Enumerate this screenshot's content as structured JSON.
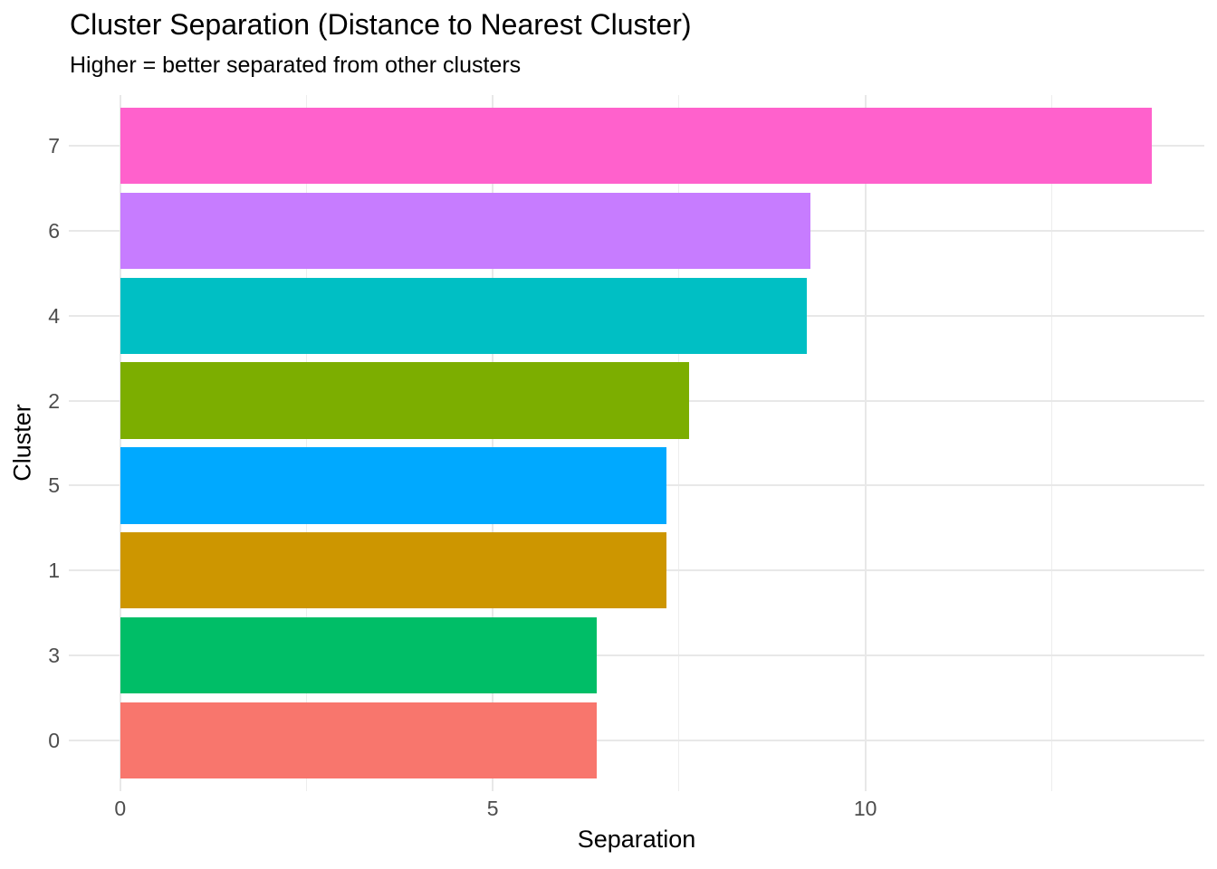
{
  "chart_data": {
    "type": "bar",
    "orientation": "horizontal",
    "title": "Cluster Separation (Distance to Nearest Cluster)",
    "subtitle": "Higher = better separated from other clusters",
    "xlabel": "Separation",
    "ylabel": "Cluster",
    "categories": [
      "7",
      "6",
      "4",
      "2",
      "5",
      "1",
      "3",
      "0"
    ],
    "values": [
      13.85,
      9.26,
      9.21,
      7.64,
      7.33,
      7.33,
      6.39,
      6.39
    ],
    "bar_colors": [
      "#FF61CC",
      "#C77CFF",
      "#00BFC4",
      "#7CAE00",
      "#00A9FF",
      "#CD9600",
      "#00BE67",
      "#F8766D"
    ],
    "x_axis": {
      "tick_labels": [
        "0",
        "5",
        "10"
      ],
      "tick_values": [
        0,
        5,
        10
      ],
      "minor_tick_values": [
        2.5,
        7.5,
        12.5
      ],
      "range": [
        -0.69,
        14.55
      ]
    },
    "grid": {
      "show": true,
      "major_color": "#E8E8E8",
      "minor_color": "#EDEDED"
    },
    "legend": "none",
    "bar_width_fraction": 0.9,
    "colors": {
      "background": "#FFFFFF",
      "axis_text": "#4D4D4D",
      "title_text": "#000000"
    }
  }
}
